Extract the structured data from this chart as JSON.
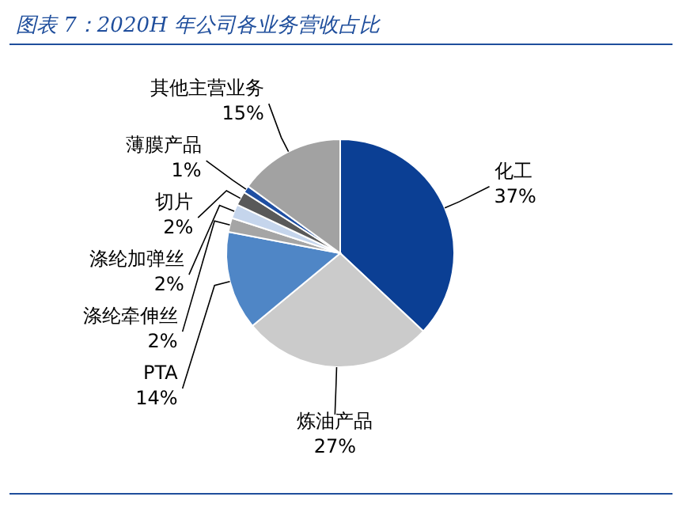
{
  "chart_data": {
    "type": "pie",
    "title": "图表 7：2020H 年公司各业务营收占比",
    "categories": [
      "化工",
      "炼油产品",
      "PTA",
      "涤纶牵伸丝",
      "涤纶加弹丝",
      "切片",
      "薄膜产品",
      "其他主营业务"
    ],
    "values": [
      37,
      27,
      14,
      2,
      2,
      2,
      1,
      15
    ],
    "colors": [
      "#0b3f94",
      "#cbcbcb",
      "#4f86c6",
      "#a5a5a5",
      "#c5d5ec",
      "#595959",
      "#1f4fa3",
      "#a2a2a2"
    ],
    "value_labels": [
      "37%",
      "27%",
      "14%",
      "2%",
      "2%",
      "2%",
      "1%",
      "15%"
    ]
  }
}
